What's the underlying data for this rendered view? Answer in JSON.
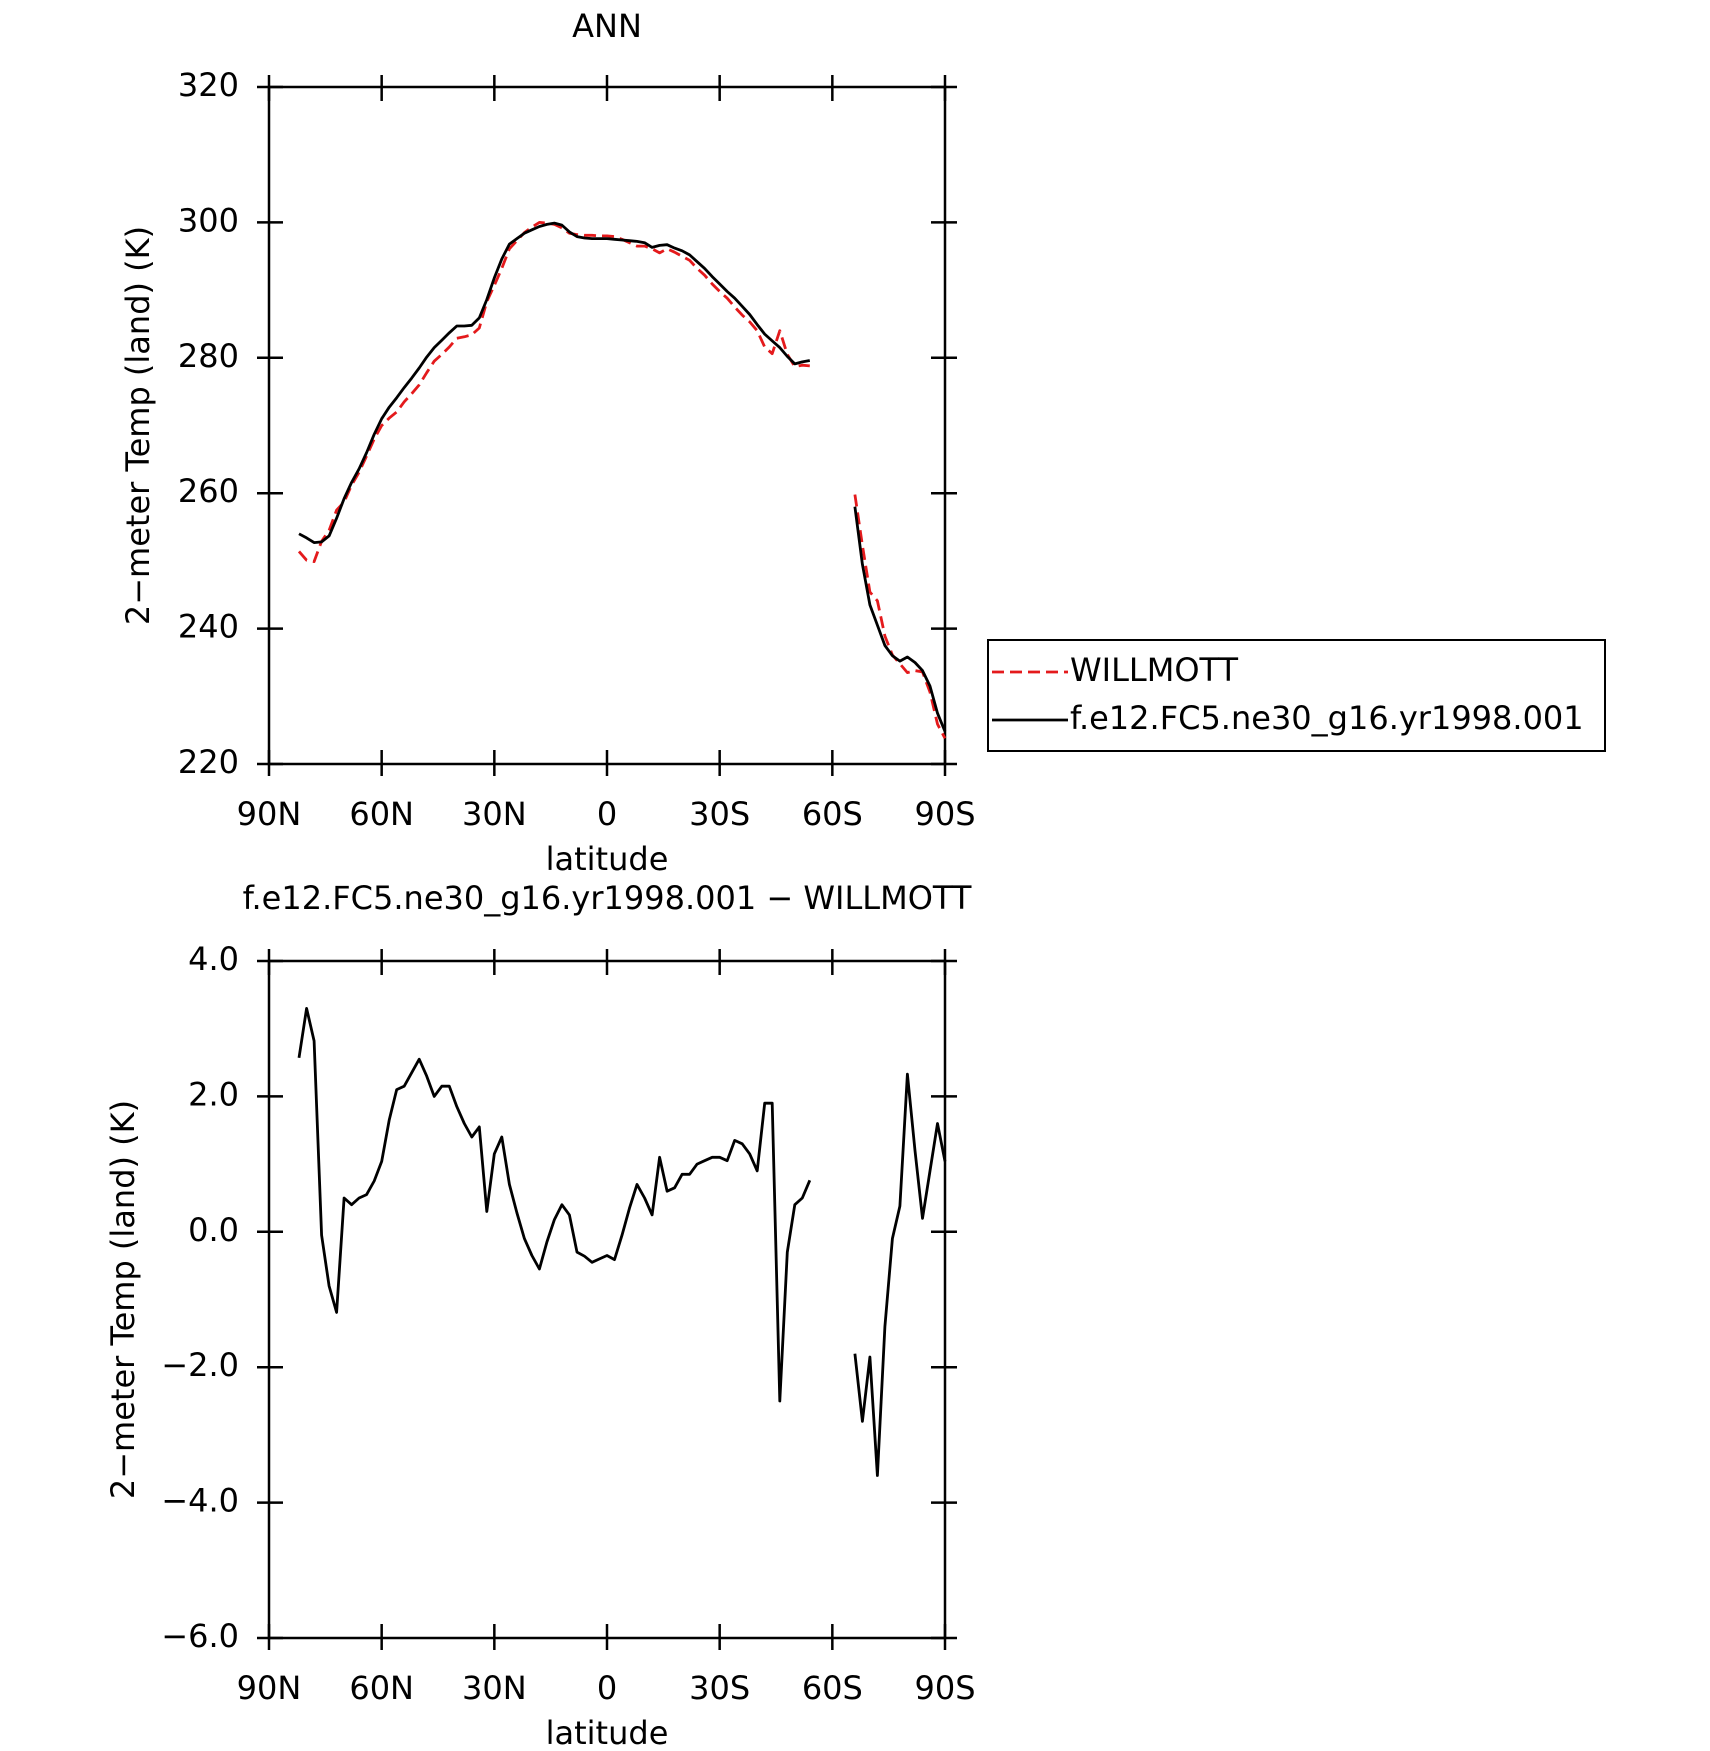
{
  "chart_data": [
    {
      "type": "line",
      "title": "ANN",
      "xlabel": "latitude",
      "ylabel": "2−meter Temp (land) (K)",
      "x": [
        82,
        80,
        78,
        76,
        74,
        72,
        70,
        68,
        66,
        64,
        62,
        60,
        58,
        56,
        54,
        52,
        50,
        48,
        46,
        44,
        42,
        40,
        38,
        36,
        34,
        32,
        30,
        28,
        26,
        24,
        22,
        20,
        18,
        16,
        14,
        12,
        10,
        8,
        6,
        4,
        2,
        0,
        -2,
        -4,
        -6,
        -8,
        -10,
        -12,
        -14,
        -16,
        -18,
        -20,
        -22,
        -24,
        -26,
        -28,
        -30,
        -32,
        -34,
        -36,
        -38,
        -40,
        -42,
        -44,
        -46,
        -48,
        -50,
        -52,
        -54,
        -56,
        -58,
        -60,
        -62,
        -64,
        -66,
        -68,
        -70,
        -72,
        -74,
        -76,
        -78,
        -80,
        -82,
        -84,
        -86,
        -88,
        -90
      ],
      "series": [
        {
          "name": "WILLMOTT",
          "color": "#e41a1c",
          "dash": true,
          "values": [
            251.4,
            250.1,
            249.9,
            252.9,
            254.5,
            257.5,
            258.7,
            261.2,
            263.1,
            265.5,
            268.0,
            270.0,
            271.1,
            272.0,
            273.5,
            274.7,
            276.0,
            277.8,
            279.5,
            280.5,
            281.6,
            282.9,
            283.1,
            283.4,
            284.4,
            288.3,
            290.7,
            293.2,
            296.1,
            297.3,
            298.5,
            299.3,
            300.0,
            299.9,
            299.7,
            299.2,
            298.4,
            298.2,
            298.1,
            298.1,
            298.0,
            298.0,
            297.9,
            297.5,
            297.0,
            296.5,
            296.5,
            296.1,
            295.5,
            296.1,
            295.6,
            295.0,
            294.4,
            293.2,
            292.2,
            290.9,
            289.8,
            288.8,
            287.5,
            286.3,
            285.3,
            284.0,
            281.6,
            280.6,
            284.0,
            280.5,
            278.7,
            278.9,
            278.8,
            null,
            null,
            null,
            null,
            null,
            259.8,
            252.3,
            245.4,
            244.1,
            238.9,
            236.1,
            234.8,
            233.5,
            233.8,
            233.6,
            230.6,
            225.9,
            223.8
          ]
        },
        {
          "name": "f.e12.FC5.ne30_g16.yr1998.001",
          "color": "#000000",
          "dash": false,
          "values": [
            254.0,
            253.4,
            252.7,
            252.8,
            253.7,
            256.3,
            259.2,
            261.6,
            263.6,
            266,
            268.7,
            271,
            272.7,
            274.1,
            275.6,
            277,
            278.5,
            280.1,
            281.5,
            282.6,
            283.7,
            284.7,
            284.7,
            284.8,
            285.9,
            288.6,
            291.8,
            294.6,
            296.8,
            297.6,
            298.4,
            298.9,
            299.4,
            299.7,
            299.9,
            299.6,
            298.6,
            297.9,
            297.7,
            297.6,
            297.6,
            297.6,
            297.5,
            297.4,
            297.3,
            297.2,
            297,
            296.3,
            296.6,
            296.7,
            296.2,
            295.8,
            295.2,
            294.2,
            293.2,
            292,
            290.9,
            289.8,
            288.8,
            287.6,
            286.4,
            284.9,
            283.5,
            282.5,
            281.5,
            280.2,
            279.1,
            279.4,
            279.6,
            null,
            null,
            null,
            null,
            null,
            258,
            249.5,
            243.5,
            240.5,
            237.5,
            236,
            235.2,
            235.8,
            235,
            233.8,
            231.5,
            227.5,
            224.8
          ]
        }
      ],
      "xlim": [
        90,
        -90
      ],
      "xticks": [
        {
          "value": 90,
          "label": "90N"
        },
        {
          "value": 60,
          "label": "60N"
        },
        {
          "value": 30,
          "label": "30N"
        },
        0,
        {
          "value": -30,
          "label": "30S"
        },
        {
          "value": -60,
          "label": "60S"
        },
        {
          "value": -90,
          "label": "90S"
        }
      ],
      "ylim": [
        220,
        320
      ],
      "yticks": [
        220,
        240,
        260,
        280,
        300,
        320
      ],
      "legend": "right"
    },
    {
      "type": "line",
      "title": "f.e12.FC5.ne30_g16.yr1998.001 − WILLMOTT",
      "xlabel": "latitude",
      "ylabel": "2−meter Temp (land) (K)",
      "x": [
        82,
        80,
        78,
        76,
        74,
        72,
        70,
        68,
        66,
        64,
        62,
        60,
        58,
        56,
        54,
        52,
        50,
        48,
        46,
        44,
        42,
        40,
        38,
        36,
        34,
        32,
        30,
        28,
        26,
        24,
        22,
        20,
        18,
        16,
        14,
        12,
        10,
        8,
        6,
        4,
        2,
        0,
        -2,
        -4,
        -6,
        -8,
        -10,
        -12,
        -14,
        -16,
        -18,
        -20,
        -22,
        -24,
        -26,
        -28,
        -30,
        -32,
        -34,
        -36,
        -38,
        -40,
        -42,
        -44,
        -46,
        -48,
        -50,
        -52,
        -54,
        -56,
        -58,
        -60,
        -62,
        -64,
        -66,
        -68,
        -70,
        -72,
        -74,
        -76,
        -78,
        -80,
        -82,
        -84,
        -86,
        -88,
        -90
      ],
      "color": "#000000",
      "values": [
        2.57,
        3.3,
        2.82,
        -0.05,
        -0.8,
        -1.19,
        0.5,
        0.4,
        0.5,
        0.55,
        0.75,
        1.04,
        1.65,
        2.1,
        2.15,
        2.35,
        2.55,
        2.3,
        2.0,
        2.15,
        2.15,
        1.85,
        1.6,
        1.4,
        1.55,
        0.3,
        1.15,
        1.4,
        0.7,
        0.28,
        -0.1,
        -0.35,
        -0.55,
        -0.15,
        0.18,
        0.4,
        0.25,
        -0.3,
        -0.36,
        -0.45,
        -0.4,
        -0.35,
        -0.41,
        -0.05,
        0.35,
        0.7,
        0.5,
        0.25,
        1.1,
        0.6,
        0.65,
        0.85,
        0.85,
        1.0,
        1.05,
        1.1,
        1.1,
        1.05,
        1.35,
        1.3,
        1.15,
        0.9,
        1.9,
        1.9,
        -2.5,
        -0.3,
        0.4,
        0.5,
        0.76,
        null,
        null,
        null,
        null,
        null,
        -1.8,
        -2.8,
        -1.85,
        -3.6,
        -1.4,
        -0.1,
        0.38,
        2.33,
        1.2,
        0.2,
        0.9,
        1.6,
        1.04
      ],
      "xlim": [
        90,
        -90
      ],
      "xticks": [
        {
          "value": 90,
          "label": "90N"
        },
        {
          "value": 60,
          "label": "60N"
        },
        {
          "value": 30,
          "label": "30N"
        },
        0,
        {
          "value": -30,
          "label": "30S"
        },
        {
          "value": -60,
          "label": "60S"
        },
        {
          "value": -90,
          "label": "90S"
        }
      ],
      "ylim": [
        -6,
        4
      ],
      "yticks": [
        {
          "value": -6,
          "label": "−6.0"
        },
        {
          "value": -4,
          "label": "−4.0"
        },
        {
          "value": -2,
          "label": "−2.0"
        },
        {
          "value": 0,
          "label": "0.0"
        },
        {
          "value": 2,
          "label": "2.0"
        },
        {
          "value": 4,
          "label": "4.0"
        }
      ]
    }
  ]
}
